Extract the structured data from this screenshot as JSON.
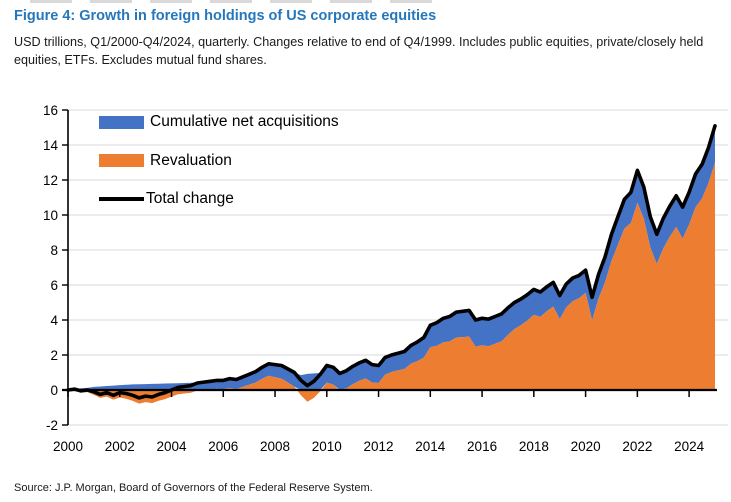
{
  "header": {
    "title": "Figure 4: Growth in foreign holdings of US corporate equities",
    "subtitle": "USD trillions, Q1/2000-Q4/2024, quarterly. Changes relative to end of Q4/1999. Includes public equities, private/closely held equities, ETFs. Excludes mutual fund shares."
  },
  "footer": {
    "source": "Source: J.P. Morgan, Board of Governors of the Federal Reserve System."
  },
  "legend": [
    {
      "label": "Cumulative net acquisitions",
      "swatch": "area",
      "color": "#4472c4"
    },
    {
      "label": "Revaluation",
      "swatch": "area",
      "color": "#ed7d31"
    },
    {
      "label": "Total change",
      "swatch": "line",
      "color": "#000000"
    }
  ],
  "colors": {
    "title_blue": "#2577bd",
    "acquisitions_blue": "#4472c4",
    "revaluation_orange": "#ed7d31",
    "total_line": "#000000",
    "gridline": "#d9d9d9",
    "axis": "#000000"
  },
  "chart_data": {
    "type": "area",
    "stacked": true,
    "title": "Growth in foreign holdings of US corporate equities",
    "units": "USD trillions",
    "x": {
      "start": "Q1/2000",
      "end": "Q4/2024",
      "step": "quarter",
      "count": 100
    },
    "x_tick_labels": [
      "2000",
      "2002",
      "2004",
      "2006",
      "2008",
      "2010",
      "2012",
      "2014",
      "2016",
      "2018",
      "2020",
      "2022",
      "2024"
    ],
    "y_ticks": [
      16,
      14,
      12,
      10,
      8,
      6,
      4,
      2,
      0,
      -2
    ],
    "ylim": [
      -2,
      16
    ],
    "grid": "horizontal",
    "legend_position": "top-left-inside",
    "series": [
      {
        "name": "Cumulative net acquisitions",
        "role": "stacked-area",
        "color": "#4472c4",
        "values": [
          0.05,
          0.1,
          0.12,
          0.18,
          0.2,
          0.23,
          0.25,
          0.28,
          0.3,
          0.32,
          0.33,
          0.34,
          0.35,
          0.36,
          0.37,
          0.38,
          0.39,
          0.4,
          0.41,
          0.43,
          0.45,
          0.47,
          0.49,
          0.51,
          0.53,
          0.55,
          0.57,
          0.6,
          0.63,
          0.66,
          0.69,
          0.72,
          0.75,
          0.78,
          0.81,
          0.85,
          0.92,
          0.95,
          0.97,
          0.98,
          0.99,
          1.0,
          1.01,
          1.02,
          1.03,
          1.04,
          1.02,
          1.0,
          0.98,
          0.97,
          0.98,
          1.0,
          1.05,
          1.1,
          1.15,
          1.25,
          1.33,
          1.38,
          1.42,
          1.45,
          1.48,
          1.5,
          1.52,
          1.54,
          1.55,
          1.56,
          1.56,
          1.55,
          1.52,
          1.5,
          1.48,
          1.45,
          1.42,
          1.4,
          1.38,
          1.35,
          1.33,
          1.32,
          1.31,
          1.3,
          1.32,
          1.38,
          1.45,
          1.52,
          1.6,
          1.68,
          1.75,
          1.85,
          1.8,
          1.75,
          1.7,
          1.72,
          1.75,
          1.78,
          1.8,
          1.85,
          1.9,
          1.95,
          2.02,
          2.1
        ]
      },
      {
        "name": "Revaluation",
        "role": "stacked-area",
        "color": "#ed7d31",
        "values": [
          0.0,
          -0.15,
          -0.12,
          -0.28,
          -0.45,
          -0.38,
          -0.55,
          -0.43,
          -0.5,
          -0.62,
          -0.78,
          -0.69,
          -0.75,
          -0.61,
          -0.52,
          -0.38,
          -0.24,
          -0.2,
          -0.16,
          -0.03,
          0.0,
          0.03,
          0.06,
          0.04,
          0.12,
          0.05,
          0.18,
          0.3,
          0.42,
          0.64,
          0.81,
          0.73,
          0.65,
          0.42,
          0.19,
          -0.3,
          -0.67,
          -0.45,
          -0.07,
          0.42,
          0.31,
          -0.05,
          0.09,
          0.33,
          0.52,
          0.66,
          0.43,
          0.4,
          0.87,
          1.03,
          1.12,
          1.2,
          1.5,
          1.65,
          1.85,
          2.45,
          2.52,
          2.72,
          2.78,
          3.0,
          3.02,
          3.05,
          2.48,
          2.56,
          2.5,
          2.64,
          2.79,
          3.15,
          3.48,
          3.7,
          3.97,
          4.3,
          4.18,
          4.5,
          4.77,
          4.05,
          4.72,
          5.08,
          5.24,
          5.55,
          3.98,
          5.22,
          6.15,
          7.38,
          8.3,
          9.22,
          9.55,
          10.7,
          9.8,
          8.15,
          7.2,
          8.08,
          8.75,
          9.32,
          8.65,
          9.45,
          10.45,
          10.95,
          11.83,
          13.0
        ]
      },
      {
        "name": "Total change",
        "role": "line",
        "color": "#000000",
        "derived": "sum of stacked series",
        "values": [
          0.05,
          -0.05,
          0.0,
          -0.1,
          -0.25,
          -0.15,
          -0.3,
          -0.15,
          -0.2,
          -0.3,
          -0.45,
          -0.35,
          -0.4,
          -0.25,
          -0.15,
          0.0,
          0.15,
          0.2,
          0.25,
          0.4,
          0.45,
          0.5,
          0.55,
          0.55,
          0.65,
          0.6,
          0.75,
          0.9,
          1.05,
          1.3,
          1.5,
          1.45,
          1.4,
          1.2,
          1.0,
          0.55,
          0.25,
          0.5,
          0.9,
          1.4,
          1.3,
          0.95,
          1.1,
          1.35,
          1.55,
          1.7,
          1.45,
          1.4,
          1.85,
          2.0,
          2.1,
          2.2,
          2.55,
          2.75,
          3.0,
          3.7,
          3.85,
          4.1,
          4.2,
          4.45,
          4.5,
          4.55,
          4.0,
          4.1,
          4.05,
          4.2,
          4.35,
          4.7,
          5.0,
          5.2,
          5.45,
          5.75,
          5.6,
          5.9,
          6.15,
          5.4,
          6.05,
          6.4,
          6.55,
          6.85,
          5.3,
          6.6,
          7.6,
          8.9,
          9.9,
          10.9,
          11.3,
          12.55,
          11.6,
          9.9,
          8.9,
          9.8,
          10.5,
          11.1,
          10.45,
          11.3,
          12.35,
          12.9,
          13.85,
          15.1
        ]
      }
    ]
  }
}
